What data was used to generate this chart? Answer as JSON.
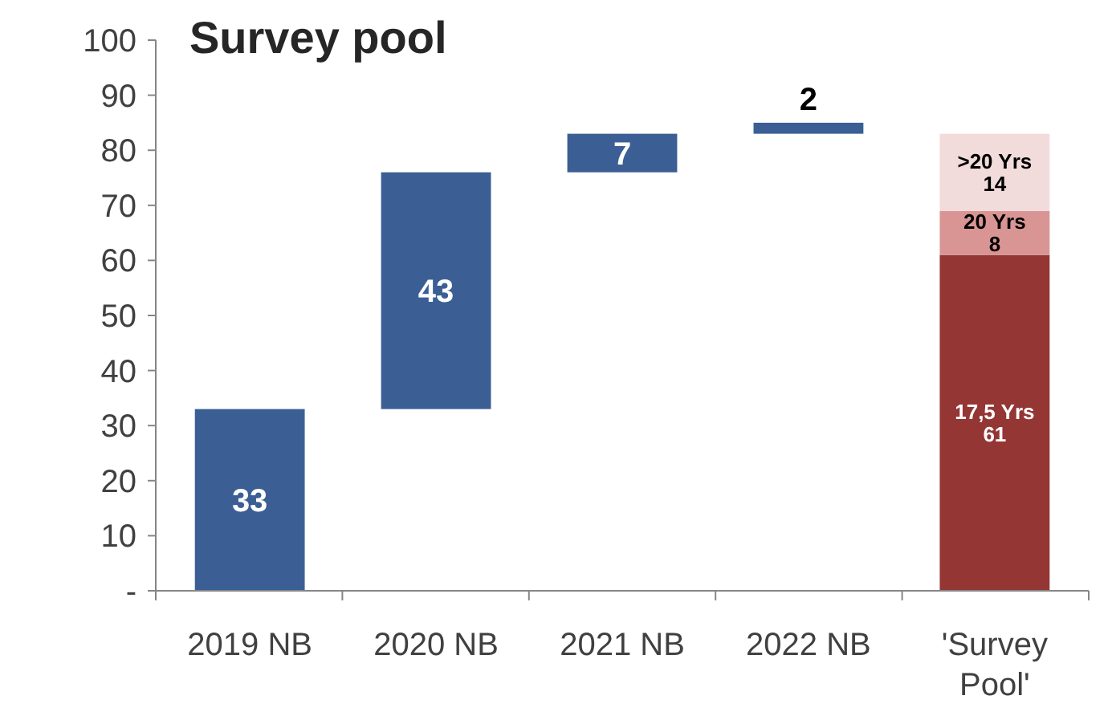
{
  "chart_data": {
    "type": "bar",
    "title": "Survey pool",
    "categories": [
      "2019 NB",
      "2020 NB",
      "2021 NB",
      "2022 NB",
      "'Survey Pool'"
    ],
    "series": [
      {
        "color": "#3b5f95",
        "values": [
          33,
          43,
          7,
          2,
          null
        ],
        "base": [
          0,
          33,
          76,
          83,
          null
        ]
      },
      {
        "name": "17,5 Yrs",
        "color": "#943634",
        "values": [
          null,
          null,
          null,
          null,
          61
        ],
        "base": [
          null,
          null,
          null,
          null,
          0
        ]
      },
      {
        "name": "20 Yrs",
        "color": "#d99594",
        "values": [
          null,
          null,
          null,
          null,
          8
        ],
        "base": [
          null,
          null,
          null,
          null,
          61
        ]
      },
      {
        "name": ">20 Yrs",
        "color": "#f2dcdb",
        "values": [
          null,
          null,
          null,
          null,
          14
        ],
        "base": [
          null,
          null,
          null,
          null,
          69
        ]
      }
    ],
    "data_labels": true,
    "ylim": [
      0,
      100
    ],
    "yticks": [
      {
        "value": 0,
        "label": "-"
      },
      10,
      20,
      30,
      40,
      50,
      60,
      70,
      80,
      90,
      100
    ],
    "grid": false
  }
}
